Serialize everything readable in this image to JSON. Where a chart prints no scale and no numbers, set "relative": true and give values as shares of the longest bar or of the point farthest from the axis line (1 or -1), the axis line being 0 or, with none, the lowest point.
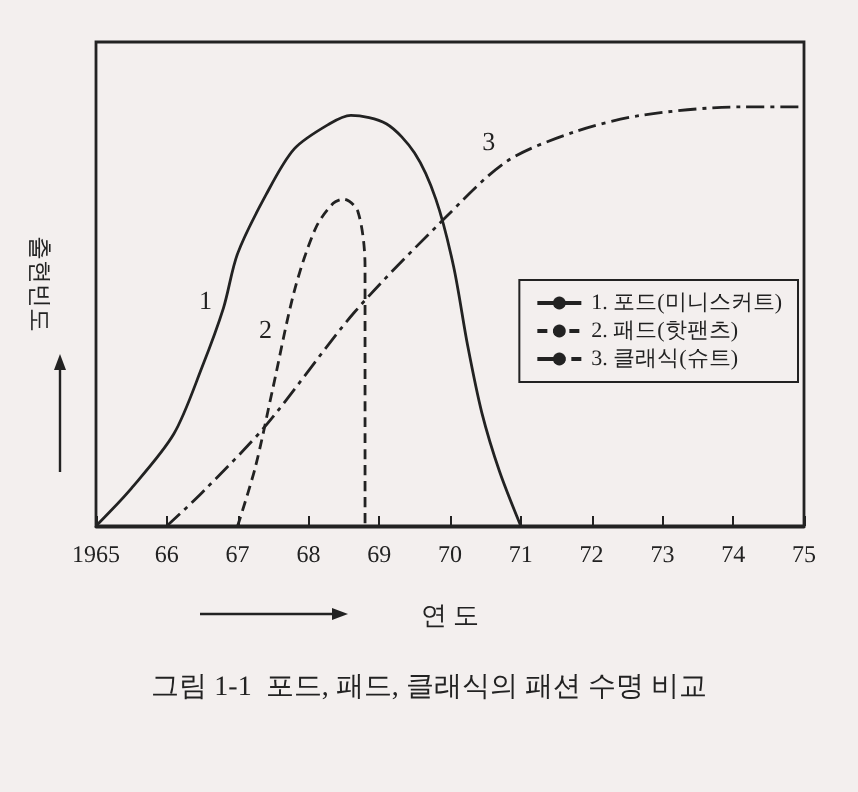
{
  "chart_data": {
    "type": "line",
    "relative": true,
    "title": "그림 1-1  포드, 패드, 클래식의 패션 수명 비교",
    "xlabel": "연 도",
    "ylabel": "출현빈도",
    "xlim": [
      1965,
      1975
    ],
    "xticks": [
      {
        "value": 1965,
        "label": "1965"
      },
      {
        "value": 1966,
        "label": "66"
      },
      {
        "value": 1967,
        "label": "67"
      },
      {
        "value": 1968,
        "label": "68"
      },
      {
        "value": 1969,
        "label": "69"
      },
      {
        "value": 1970,
        "label": "70"
      },
      {
        "value": 1971,
        "label": "71"
      },
      {
        "value": 1972,
        "label": "72"
      },
      {
        "value": 1973,
        "label": "73"
      },
      {
        "value": 1974,
        "label": "74"
      },
      {
        "value": 1975,
        "label": "75"
      }
    ],
    "series": [
      {
        "name": "1. 포드(미니스커트)",
        "color": "#222222",
        "line_style": "solid",
        "x": [
          1965,
          1965.5,
          1966.1,
          1966.5,
          1966.8,
          1967,
          1967.4,
          1967.8,
          1968.3,
          1968.6,
          1969.1,
          1969.5,
          1969.8,
          1970.05,
          1970.25,
          1970.45,
          1970.7,
          1971
        ],
        "values": [
          0,
          0.09,
          0.22,
          0.38,
          0.52,
          0.65,
          0.79,
          0.9,
          0.96,
          0.98,
          0.96,
          0.89,
          0.78,
          0.62,
          0.43,
          0.27,
          0.13,
          0
        ]
      },
      {
        "name": "2. 패드(핫팬츠)",
        "color": "#222222",
        "line_style": "dashed",
        "x": [
          1967,
          1967.25,
          1967.5,
          1967.8,
          1968.1,
          1968.35,
          1968.5,
          1968.7,
          1968.8,
          1968.8
        ],
        "values": [
          0,
          0.14,
          0.33,
          0.56,
          0.71,
          0.77,
          0.78,
          0.75,
          0.62,
          0
        ]
      },
      {
        "name": "3. 클래식(슈트)",
        "color": "#222222",
        "line_style": "dashdot",
        "x": [
          1966,
          1966.5,
          1967.4,
          1968.65,
          1969.9,
          1970.8,
          1971.75,
          1972.7,
          1974.1,
          1975
        ],
        "values": [
          0,
          0.08,
          0.24,
          0.51,
          0.73,
          0.87,
          0.94,
          0.98,
          1,
          1
        ]
      }
    ],
    "annotations": [
      {
        "text": "1",
        "x": 1966.8,
        "y": 0.52
      },
      {
        "text": "2",
        "x": 1967.65,
        "y": 0.45
      },
      {
        "text": "3",
        "x": 1970.8,
        "y": 0.9
      }
    ],
    "legend": "right",
    "marker": "none",
    "grid": false
  }
}
